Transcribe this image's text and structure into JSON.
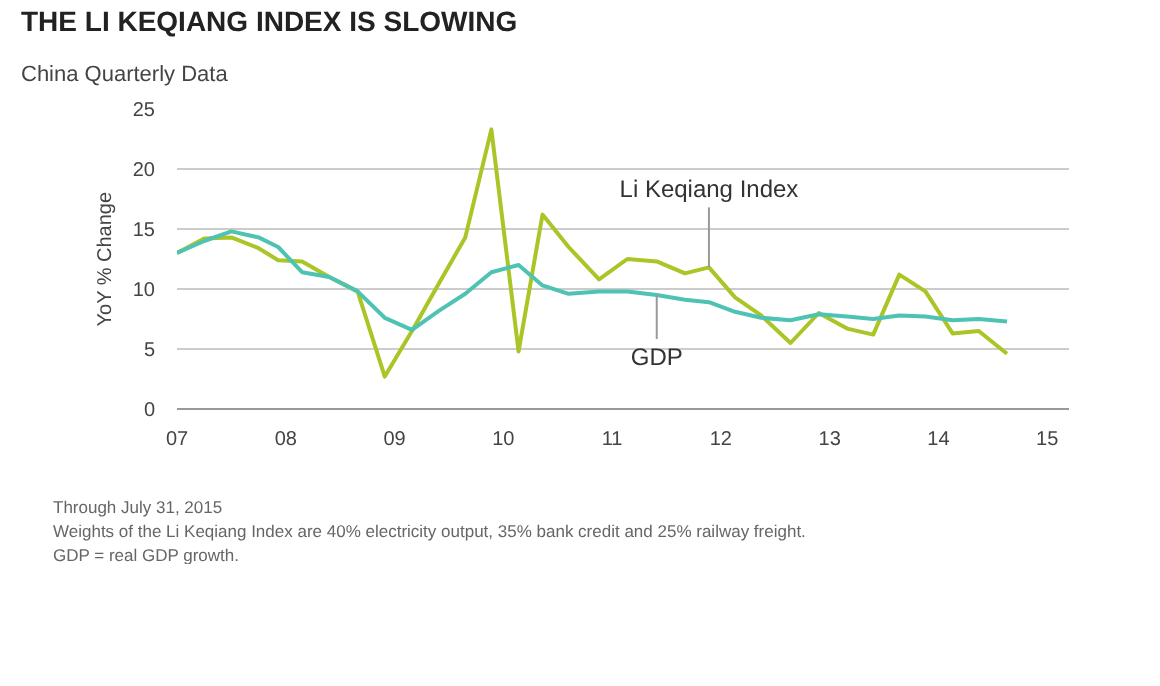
{
  "chart_data": {
    "type": "line",
    "title": "THE LI KEQIANG INDEX IS SLOWING",
    "subtitle": "China Quarterly Data",
    "ylabel": "YoY % Change",
    "series": [
      {
        "name": "Li Keqiang Index",
        "color": "#a9c526",
        "x": [
          2007.0,
          2007.25,
          2007.5,
          2007.75,
          2007.93,
          2008.15,
          2008.4,
          2008.66,
          2008.91,
          2009.16,
          2009.41,
          2009.65,
          2009.89,
          2010.14,
          2010.36,
          2010.6,
          2010.88,
          2011.14,
          2011.41,
          2011.67,
          2011.89,
          2012.13,
          2012.37,
          2012.64,
          2012.9,
          2013.16,
          2013.4,
          2013.64,
          2013.88,
          2014.13,
          2014.37,
          2014.63
        ],
        "values": [
          13,
          14.2,
          14.3,
          13.4,
          12.4,
          12.3,
          11,
          9.8,
          2.7,
          6.5,
          10.5,
          14.3,
          23.3,
          4.8,
          16.2,
          13.5,
          10.8,
          12.5,
          12.3,
          11.3,
          11.8,
          9.3,
          7.8,
          5.5,
          8,
          6.7,
          6.2,
          11.2,
          9.8,
          6.3,
          6.5,
          4.6
        ]
      },
      {
        "name": "GDP",
        "color": "#4ec3b3",
        "x": [
          2007.0,
          2007.25,
          2007.5,
          2007.75,
          2007.93,
          2008.15,
          2008.4,
          2008.66,
          2008.91,
          2009.16,
          2009.41,
          2009.65,
          2009.89,
          2010.14,
          2010.36,
          2010.6,
          2010.88,
          2011.14,
          2011.41,
          2011.67,
          2011.89,
          2012.13,
          2012.37,
          2012.64,
          2012.9,
          2013.16,
          2013.4,
          2013.64,
          2013.88,
          2014.13,
          2014.37,
          2014.63
        ],
        "values": [
          13,
          14,
          14.8,
          14.3,
          13.5,
          11.4,
          11,
          9.8,
          7.6,
          6.6,
          8.2,
          9.6,
          11.4,
          12,
          10.3,
          9.6,
          9.8,
          9.8,
          9.5,
          9.1,
          8.9,
          8.1,
          7.6,
          7.4,
          7.9,
          7.7,
          7.5,
          7.8,
          7.7,
          7.4,
          7.5,
          7.3
        ]
      }
    ],
    "xlim": [
      2007,
      2015.2
    ],
    "xticks": [
      {
        "value": 2007,
        "label": "07"
      },
      {
        "value": 2008,
        "label": "08"
      },
      {
        "value": 2009,
        "label": "09"
      },
      {
        "value": 2010,
        "label": "10"
      },
      {
        "value": 2011,
        "label": "11"
      },
      {
        "value": 2012,
        "label": "12"
      },
      {
        "value": 2013,
        "label": "13"
      },
      {
        "value": 2014,
        "label": "14"
      },
      {
        "value": 2015,
        "label": "15"
      }
    ],
    "ylim": [
      0,
      25
    ],
    "yticks": [
      0,
      5,
      10,
      15,
      20,
      25
    ],
    "grid": "y",
    "legend": false,
    "marker": "none",
    "line_style": "solid",
    "annotations": [
      "Through July 31, 2015",
      "Weights of the Li Keqiang Index are 40% electricity output, 35% bank credit and 25% railway freight.",
      "GDP = real GDP growth."
    ]
  }
}
